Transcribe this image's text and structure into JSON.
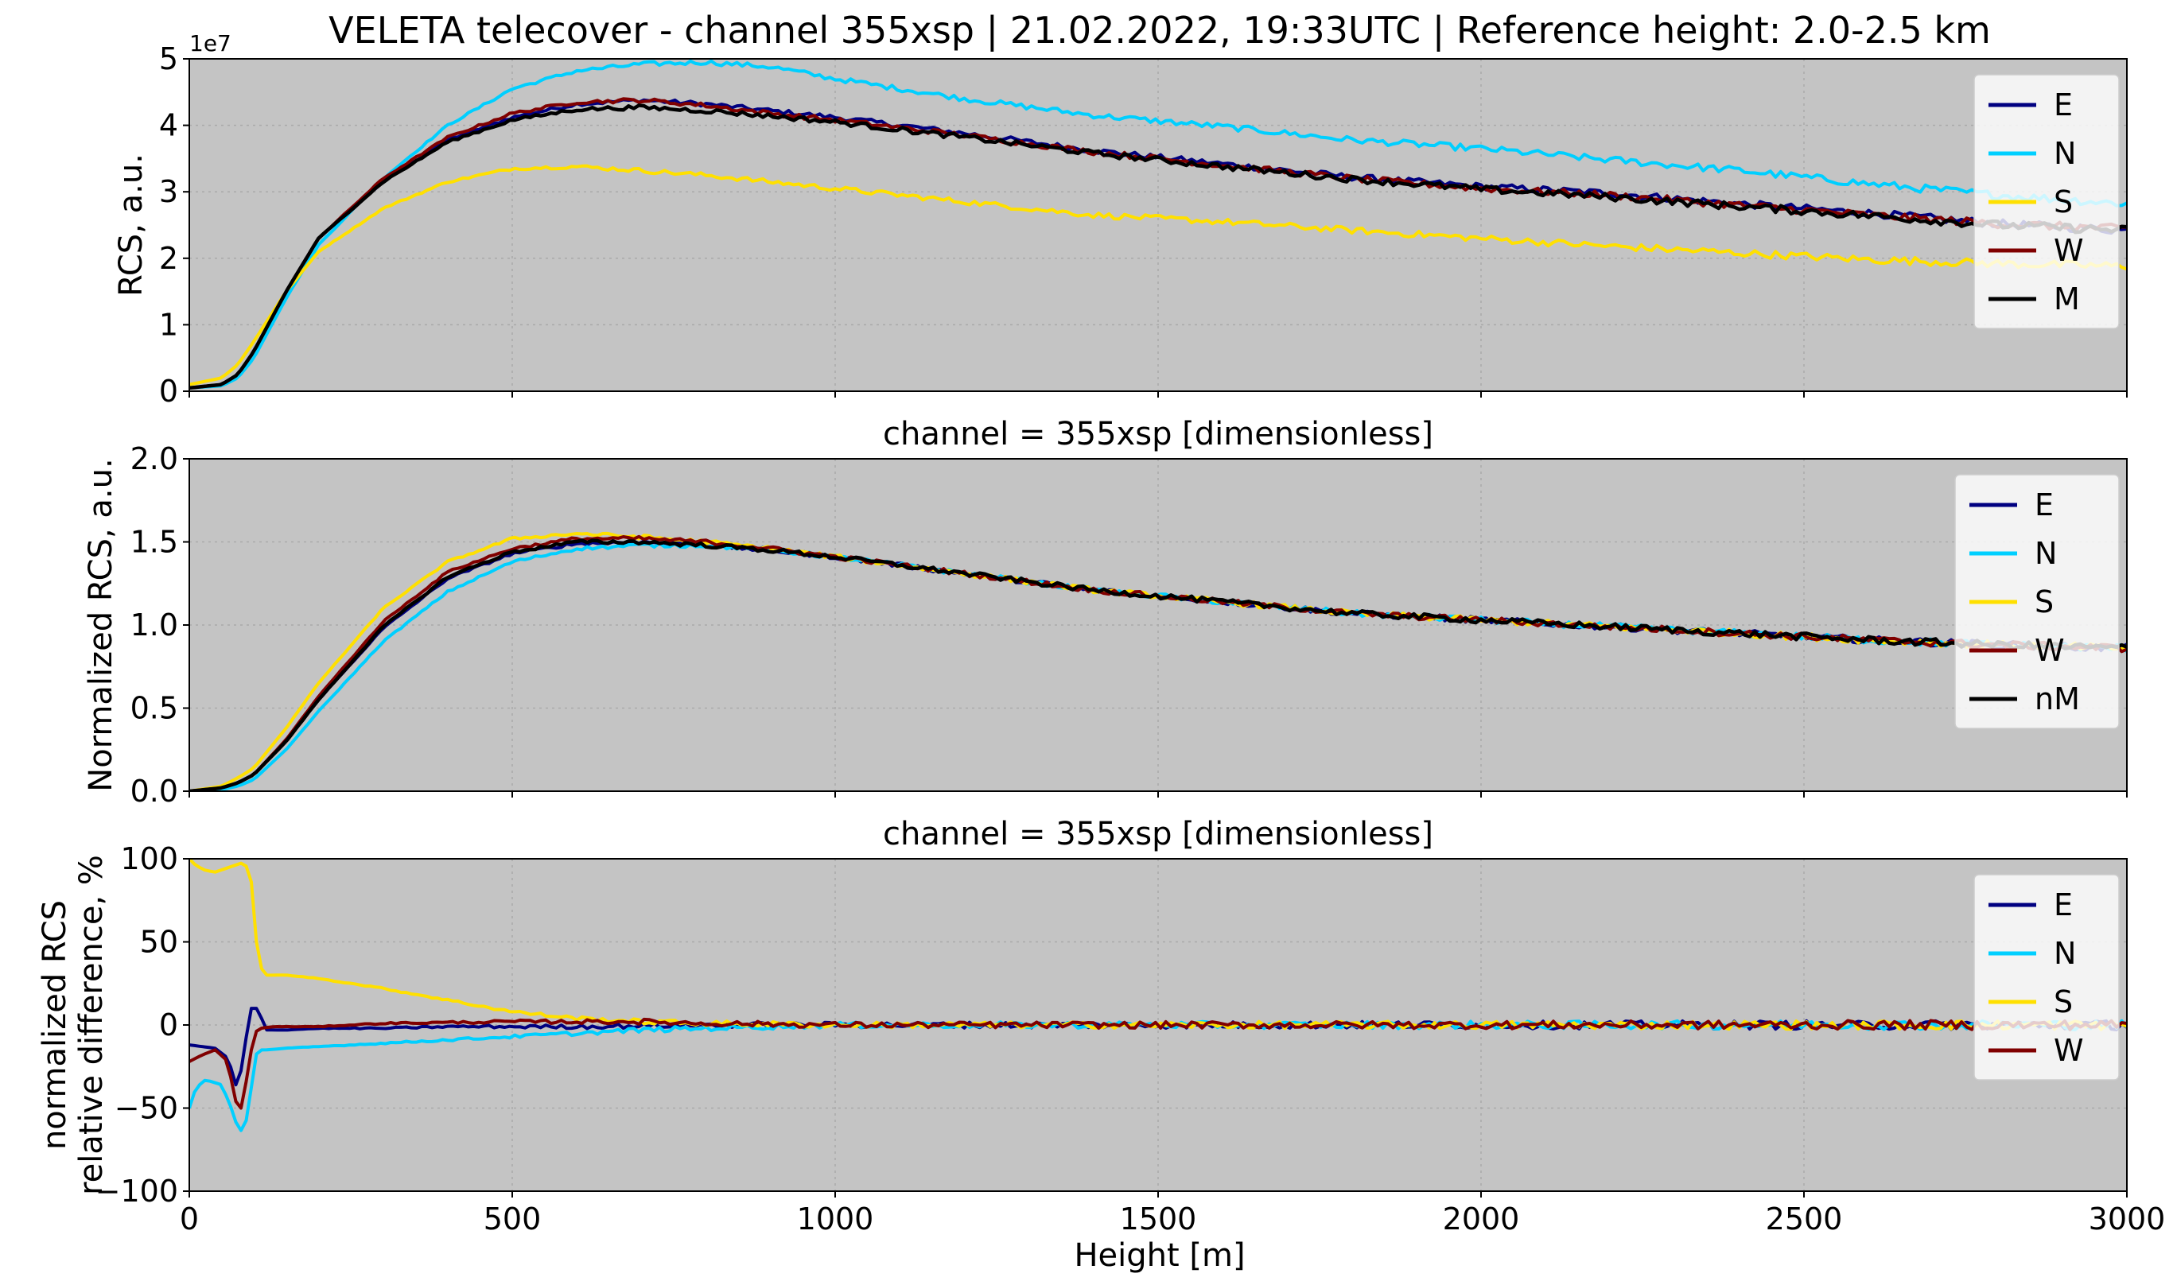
{
  "figure": {
    "suptitle": "VELETA telecover - channel 355xsp | 21.02.2022, 19:33UTC | Reference height: 2.0-2.5 km",
    "xlabel": "Height [m]"
  },
  "colors": {
    "E": "#000080",
    "N": "#00cfff",
    "S": "#ffe000",
    "W": "#800000",
    "M": "#000000",
    "axes_bg": "#c4c4c4",
    "grid": "#a9a9a9"
  },
  "chart_data": [
    {
      "type": "line",
      "title": "",
      "xlabel": "",
      "ylabel": "RCS, a.u.",
      "y_offset_label": "1e7",
      "xlim": [
        0,
        3000
      ],
      "ylim": [
        0,
        5
      ],
      "yticks": [
        0,
        1,
        2,
        3,
        4,
        5
      ],
      "ytick_labels": [
        "0",
        "1",
        "2",
        "3",
        "4",
        "5"
      ],
      "grid": true,
      "legend_position": "upper right",
      "noise": 0.04,
      "series": [
        {
          "name": "E",
          "color": "#000080",
          "x": [
            0,
            50,
            75,
            100,
            150,
            200,
            300,
            400,
            500,
            600,
            700,
            800,
            900,
            1000,
            1200,
            1400,
            1600,
            1800,
            2000,
            2200,
            2400,
            2600,
            2800,
            3000
          ],
          "y": [
            0.05,
            0.1,
            0.25,
            0.6,
            1.5,
            2.3,
            3.15,
            3.78,
            4.12,
            4.32,
            4.38,
            4.32,
            4.22,
            4.12,
            3.88,
            3.62,
            3.42,
            3.22,
            3.08,
            2.98,
            2.82,
            2.68,
            2.52,
            2.42
          ]
        },
        {
          "name": "N",
          "color": "#00cfff",
          "x": [
            0,
            50,
            75,
            100,
            150,
            200,
            300,
            400,
            500,
            600,
            700,
            800,
            900,
            1000,
            1200,
            1400,
            1600,
            1800,
            2000,
            2200,
            2400,
            2600,
            2800,
            3000
          ],
          "y": [
            0.05,
            0.08,
            0.2,
            0.5,
            1.4,
            2.2,
            3.2,
            4.0,
            4.55,
            4.82,
            4.92,
            4.95,
            4.88,
            4.7,
            4.4,
            4.15,
            3.98,
            3.78,
            3.65,
            3.48,
            3.32,
            3.12,
            2.95,
            2.82
          ]
        },
        {
          "name": "S",
          "color": "#ffe000",
          "x": [
            0,
            50,
            75,
            100,
            150,
            200,
            300,
            400,
            500,
            600,
            700,
            800,
            900,
            1000,
            1200,
            1400,
            1600,
            1800,
            2000,
            2200,
            2400,
            2600,
            2800,
            3000
          ],
          "y": [
            0.1,
            0.2,
            0.4,
            0.75,
            1.5,
            2.1,
            2.75,
            3.15,
            3.35,
            3.38,
            3.32,
            3.25,
            3.15,
            3.05,
            2.85,
            2.65,
            2.55,
            2.42,
            2.3,
            2.18,
            2.08,
            1.98,
            1.92,
            1.88
          ]
        },
        {
          "name": "W",
          "color": "#800000",
          "x": [
            0,
            50,
            75,
            100,
            150,
            200,
            300,
            400,
            500,
            600,
            700,
            800,
            900,
            1000,
            1200,
            1400,
            1600,
            1800,
            2000,
            2200,
            2400,
            2600,
            2800,
            3000
          ],
          "y": [
            0.05,
            0.1,
            0.25,
            0.6,
            1.5,
            2.3,
            3.2,
            3.82,
            4.18,
            4.35,
            4.38,
            4.3,
            4.18,
            4.08,
            3.85,
            3.6,
            3.4,
            3.2,
            3.05,
            2.95,
            2.8,
            2.65,
            2.52,
            2.44
          ]
        },
        {
          "name": "M",
          "color": "#000000",
          "x": [
            0,
            50,
            75,
            100,
            150,
            200,
            300,
            400,
            500,
            600,
            700,
            800,
            900,
            1000,
            1200,
            1400,
            1600,
            1800,
            2000,
            2200,
            2400,
            2600,
            2800,
            3000
          ],
          "y": [
            0.05,
            0.1,
            0.25,
            0.6,
            1.5,
            2.3,
            3.15,
            3.75,
            4.08,
            4.24,
            4.27,
            4.22,
            4.14,
            4.05,
            3.82,
            3.58,
            3.38,
            3.19,
            3.04,
            2.92,
            2.78,
            2.64,
            2.5,
            2.42
          ]
        }
      ]
    },
    {
      "type": "line",
      "title": "channel = 355xsp [dimensionless]",
      "xlabel": "",
      "ylabel": "Normalized RCS, a.u.",
      "xlim": [
        0,
        3000
      ],
      "ylim": [
        0,
        2
      ],
      "yticks": [
        0,
        0.5,
        1,
        1.5,
        2
      ],
      "ytick_labels": [
        "0.0",
        "0.5",
        "1.0",
        "1.5",
        "2.0"
      ],
      "grid": true,
      "legend_position": "upper right",
      "noise": 0.015,
      "series": [
        {
          "name": "E",
          "color": "#000080",
          "x": [
            0,
            50,
            75,
            100,
            150,
            200,
            300,
            400,
            500,
            600,
            700,
            800,
            900,
            1000,
            1200,
            1400,
            1600,
            1800,
            2000,
            2200,
            2400,
            2600,
            2800,
            3000
          ],
          "y": [
            0.0,
            0.02,
            0.05,
            0.1,
            0.3,
            0.55,
            0.98,
            1.28,
            1.43,
            1.49,
            1.5,
            1.48,
            1.45,
            1.41,
            1.31,
            1.21,
            1.14,
            1.07,
            1.03,
            0.99,
            0.95,
            0.91,
            0.88,
            0.86
          ]
        },
        {
          "name": "N",
          "color": "#00cfff",
          "x": [
            0,
            50,
            75,
            100,
            150,
            200,
            300,
            400,
            500,
            600,
            700,
            800,
            900,
            1000,
            1200,
            1400,
            1600,
            1800,
            2000,
            2200,
            2400,
            2600,
            2800,
            3000
          ],
          "y": [
            0.0,
            0.01,
            0.03,
            0.07,
            0.25,
            0.48,
            0.9,
            1.2,
            1.38,
            1.46,
            1.48,
            1.48,
            1.45,
            1.41,
            1.31,
            1.21,
            1.14,
            1.07,
            1.03,
            0.99,
            0.95,
            0.91,
            0.88,
            0.86
          ]
        },
        {
          "name": "S",
          "color": "#ffe000",
          "x": [
            0,
            50,
            75,
            100,
            150,
            200,
            300,
            400,
            500,
            600,
            700,
            800,
            900,
            1000,
            1200,
            1400,
            1600,
            1800,
            2000,
            2200,
            2400,
            2600,
            2800,
            3000
          ],
          "y": [
            0.0,
            0.03,
            0.08,
            0.14,
            0.38,
            0.65,
            1.1,
            1.38,
            1.52,
            1.55,
            1.53,
            1.5,
            1.46,
            1.41,
            1.31,
            1.21,
            1.14,
            1.07,
            1.03,
            0.99,
            0.95,
            0.91,
            0.88,
            0.86
          ]
        },
        {
          "name": "W",
          "color": "#800000",
          "x": [
            0,
            50,
            75,
            100,
            150,
            200,
            300,
            400,
            500,
            600,
            700,
            800,
            900,
            1000,
            1200,
            1400,
            1600,
            1800,
            2000,
            2200,
            2400,
            2600,
            2800,
            3000
          ],
          "y": [
            0.0,
            0.02,
            0.05,
            0.1,
            0.31,
            0.57,
            1.02,
            1.32,
            1.46,
            1.52,
            1.52,
            1.5,
            1.46,
            1.41,
            1.31,
            1.21,
            1.14,
            1.07,
            1.03,
            0.99,
            0.95,
            0.91,
            0.88,
            0.86
          ]
        },
        {
          "name": "nM",
          "color": "#000000",
          "x": [
            0,
            50,
            75,
            100,
            150,
            200,
            300,
            400,
            500,
            600,
            700,
            800,
            900,
            1000,
            1200,
            1400,
            1600,
            1800,
            2000,
            2200,
            2400,
            2600,
            2800,
            3000
          ],
          "y": [
            0.0,
            0.02,
            0.05,
            0.1,
            0.3,
            0.55,
            0.99,
            1.29,
            1.44,
            1.5,
            1.5,
            1.48,
            1.45,
            1.41,
            1.31,
            1.21,
            1.14,
            1.07,
            1.03,
            0.99,
            0.95,
            0.91,
            0.88,
            0.86
          ]
        }
      ]
    },
    {
      "type": "line",
      "title": "channel = 355xsp [dimensionless]",
      "xlabel": "Height [m]",
      "ylabel": "normalized RCS relative difference, %",
      "ylabel_lines": [
        "normalized RCS",
        "relative difference, %"
      ],
      "xlim": [
        0,
        3000
      ],
      "ylim": [
        -100,
        100
      ],
      "yticks": [
        -100,
        -50,
        0,
        50,
        100
      ],
      "ytick_labels": [
        "−100",
        "−50",
        "0",
        "50",
        "100"
      ],
      "xticks": [
        0,
        500,
        1000,
        1500,
        2000,
        2500,
        3000
      ],
      "xtick_labels": [
        "0",
        "500",
        "1000",
        "1500",
        "2000",
        "2500",
        "3000"
      ],
      "grid": true,
      "legend_position": "upper right",
      "noise": 1.8,
      "series": [
        {
          "name": "E",
          "color": "#000080",
          "x": [
            0,
            20,
            40,
            60,
            75,
            85,
            95,
            105,
            120,
            150,
            200,
            300,
            400,
            600,
            800,
            1000,
            1500,
            2000,
            2500,
            3000
          ],
          "y": [
            -12,
            -13,
            -14,
            -20,
            -40,
            -15,
            10,
            10,
            -3,
            -3,
            -2,
            -2,
            -1,
            -1,
            0,
            0,
            0,
            0,
            0,
            0
          ]
        },
        {
          "name": "N",
          "color": "#00cfff",
          "x": [
            0,
            10,
            25,
            50,
            65,
            75,
            85,
            95,
            105,
            120,
            150,
            200,
            300,
            500,
            700,
            900,
            1000,
            1500,
            2000,
            2500,
            3000
          ],
          "y": [
            -50,
            -38,
            -33,
            -36,
            -50,
            -62,
            -65,
            -40,
            -15,
            -15,
            -14,
            -13,
            -11,
            -7,
            -3,
            -1,
            0,
            0,
            0,
            0,
            0
          ]
        },
        {
          "name": "S",
          "color": "#ffe000",
          "x": [
            0,
            10,
            25,
            40,
            55,
            70,
            85,
            95,
            100,
            105,
            110,
            115,
            120,
            150,
            200,
            300,
            400,
            500,
            600,
            700,
            800,
            1000,
            1500,
            2000,
            2500,
            3000
          ],
          "y": [
            100,
            96,
            93,
            92,
            94,
            96,
            98,
            90,
            70,
            45,
            35,
            32,
            30,
            30,
            28,
            22,
            15,
            8,
            4,
            2,
            1,
            0,
            0,
            0,
            0,
            0
          ]
        },
        {
          "name": "W",
          "color": "#800000",
          "x": [
            0,
            20,
            40,
            60,
            70,
            80,
            90,
            100,
            110,
            130,
            200,
            300,
            500,
            700,
            800,
            1000,
            1500,
            2000,
            2500,
            3000
          ],
          "y": [
            -22,
            -18,
            -15,
            -22,
            -45,
            -50,
            -30,
            -5,
            -2,
            -1,
            -1,
            1,
            2,
            2,
            1,
            0,
            0,
            0,
            0,
            0
          ]
        }
      ]
    }
  ]
}
